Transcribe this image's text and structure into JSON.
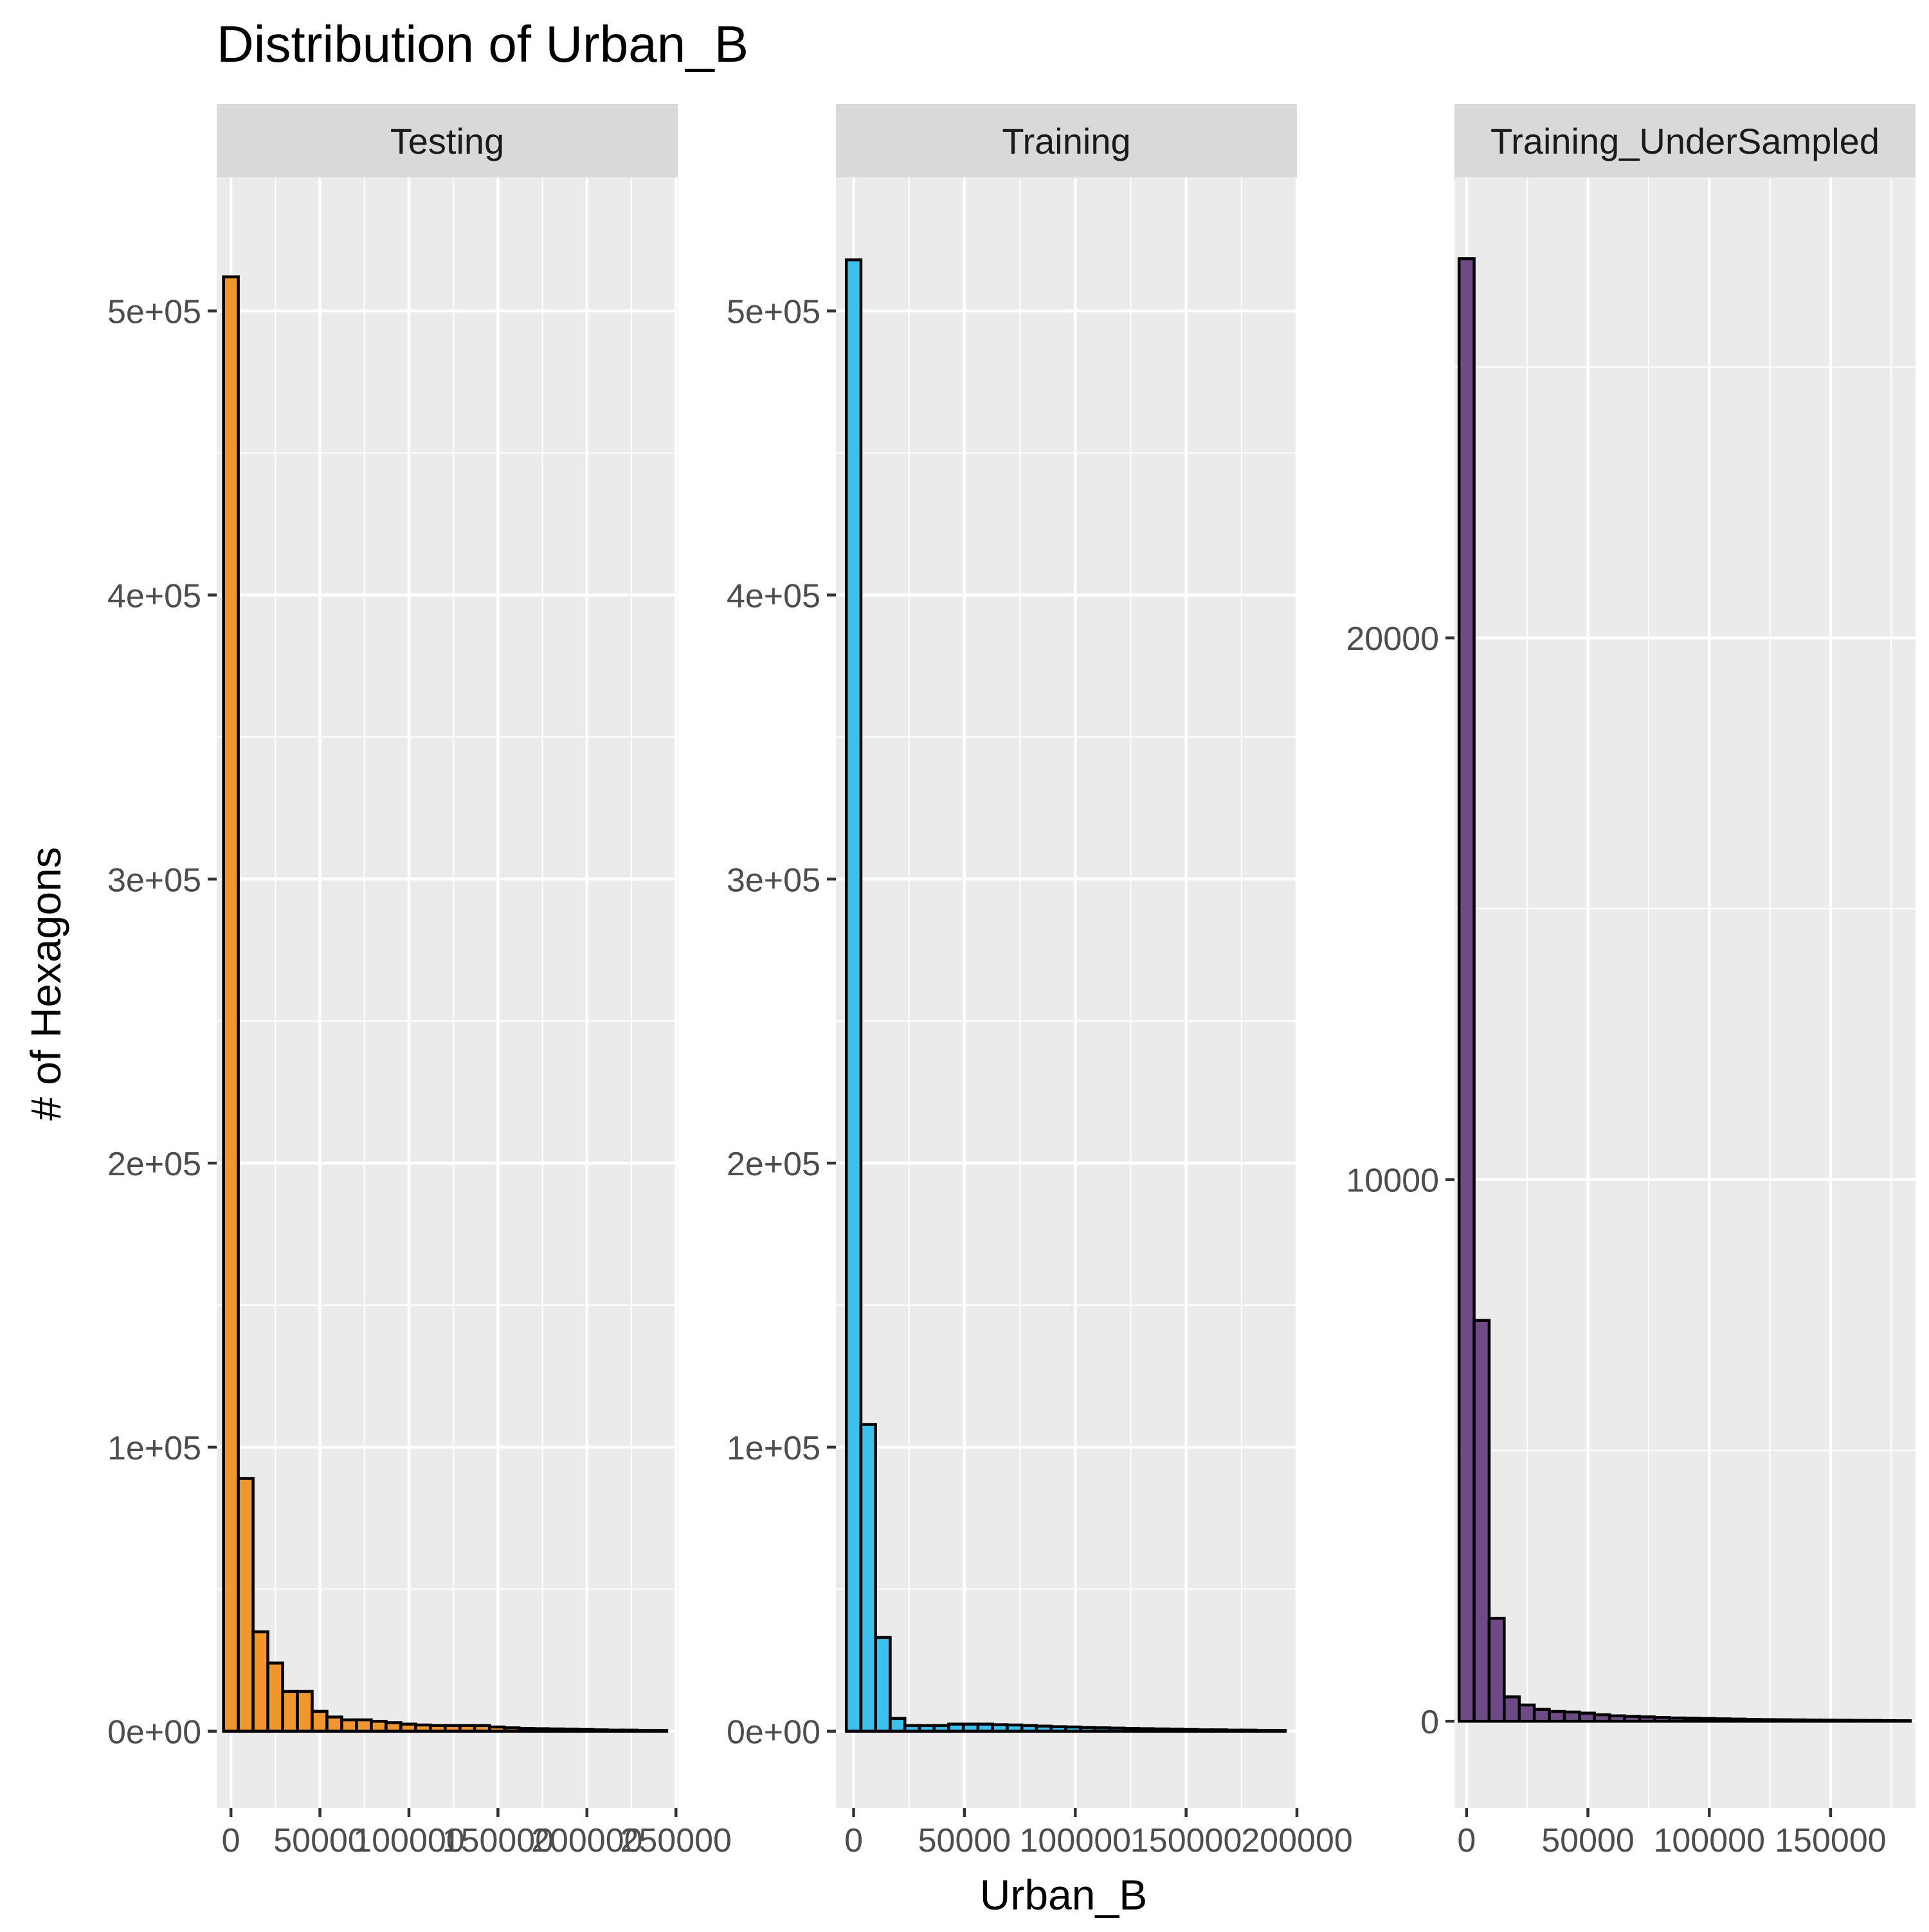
{
  "chart_data": {
    "type": "bar",
    "title": "Distribution of Urban_B",
    "xlabel": "Urban_B",
    "ylabel": "# of Hexagons",
    "grid": true,
    "legend": "none",
    "facets": [
      {
        "name": "Testing",
        "color": "#F0962E",
        "xlim": [
          -8000,
          251000
        ],
        "ylim": [
          -27000,
          547000
        ],
        "x_ticks": [
          0,
          50000,
          100000,
          150000,
          200000,
          250000
        ],
        "x_tick_labels": [
          "0",
          "50000",
          "100000",
          "150000",
          "200000",
          "250000"
        ],
        "y_ticks": [
          0,
          100000,
          200000,
          300000,
          400000,
          500000
        ],
        "y_tick_labels": [
          "0e+00",
          "1e+05",
          "2e+05",
          "3e+05",
          "4e+05",
          "5e+05"
        ],
        "bin_width": 8300,
        "bin_centers": [
          0,
          8300,
          16600,
          24900,
          33200,
          41500,
          49800,
          58100,
          66400,
          74700,
          83000,
          91300,
          99600,
          107900,
          116200,
          124500,
          132800,
          141100,
          149400,
          157700,
          166000,
          174300,
          182600,
          190900,
          199200,
          207500,
          215800,
          224100,
          232400,
          240700
        ],
        "values": [
          512000,
          89000,
          35000,
          24000,
          14000,
          14000,
          7000,
          5000,
          4000,
          4000,
          3500,
          3000,
          2500,
          2200,
          2000,
          2000,
          2000,
          2000,
          1500,
          1200,
          1000,
          900,
          800,
          700,
          600,
          500,
          400,
          400,
          300,
          300
        ]
      },
      {
        "name": "Training",
        "color": "#3CC0EE",
        "xlim": [
          -8000,
          200000
        ],
        "ylim": [
          -27000,
          547000
        ],
        "x_ticks": [
          0,
          50000,
          100000,
          150000,
          200000
        ],
        "x_tick_labels": [
          "0",
          "50000",
          "100000",
          "150000",
          "200000"
        ],
        "y_ticks": [
          0,
          100000,
          200000,
          300000,
          400000,
          500000
        ],
        "y_tick_labels": [
          "0e+00",
          "1e+05",
          "2e+05",
          "3e+05",
          "4e+05",
          "5e+05"
        ],
        "bin_width": 6600,
        "bin_centers": [
          0,
          6600,
          13200,
          19800,
          26400,
          33000,
          39600,
          46200,
          52800,
          59400,
          66000,
          72600,
          79200,
          85800,
          92400,
          99000,
          105600,
          112200,
          118800,
          125400,
          132000,
          138600,
          145200,
          151800,
          158400,
          165000,
          171600,
          178200,
          184800,
          191400
        ],
        "values": [
          518000,
          108000,
          33000,
          4500,
          2000,
          2000,
          2000,
          2500,
          2500,
          2500,
          2300,
          2200,
          2000,
          1800,
          1600,
          1500,
          1300,
          1200,
          1100,
          1000,
          900,
          800,
          700,
          600,
          500,
          500,
          400,
          400,
          300,
          300
        ]
      },
      {
        "name": "Training_UnderSampled",
        "color": "#6E4A87",
        "xlim": [
          -5000,
          185000
        ],
        "ylim": [
          -1600,
          28500
        ],
        "x_ticks": [
          0,
          50000,
          100000,
          150000
        ],
        "x_tick_labels": [
          "0",
          "50000",
          "100000",
          "150000"
        ],
        "y_ticks": [
          0,
          10000,
          20000
        ],
        "y_tick_labels": [
          "0",
          "10000",
          "20000"
        ],
        "bin_width": 6200,
        "bin_centers": [
          0,
          6200,
          12400,
          18600,
          24800,
          31000,
          37200,
          43400,
          49600,
          55800,
          62000,
          68200,
          74400,
          80600,
          86800,
          93000,
          99200,
          105400,
          111600,
          117800,
          124000,
          130200,
          136400,
          142600,
          148800,
          155000,
          161200,
          167400,
          173600,
          179800
        ],
        "values": [
          27000,
          7400,
          1900,
          450,
          300,
          220,
          180,
          170,
          150,
          120,
          100,
          90,
          80,
          70,
          60,
          55,
          50,
          45,
          40,
          35,
          30,
          28,
          25,
          22,
          20,
          18,
          16,
          15,
          12,
          10
        ]
      }
    ]
  }
}
